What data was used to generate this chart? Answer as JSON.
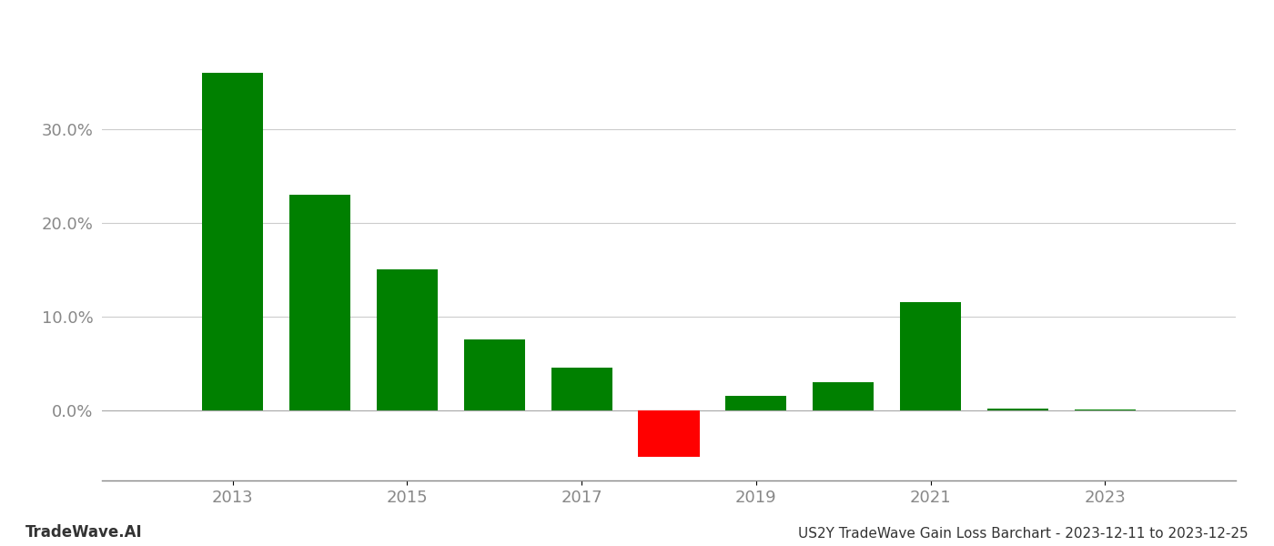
{
  "years": [
    2013,
    2014,
    2015,
    2016,
    2017,
    2018,
    2019,
    2020,
    2021,
    2022,
    2023
  ],
  "values": [
    0.36,
    0.23,
    0.15,
    0.075,
    0.045,
    -0.05,
    0.015,
    0.03,
    0.115,
    0.002,
    0.001
  ],
  "bar_colors": [
    "#008000",
    "#008000",
    "#008000",
    "#008000",
    "#008000",
    "#ff0000",
    "#008000",
    "#008000",
    "#008000",
    "#008000",
    "#008000"
  ],
  "title": "US2Y TradeWave Gain Loss Barchart - 2023-12-11 to 2023-12-25",
  "footer_left": "TradeWave.AI",
  "background_color": "#ffffff",
  "ytick_labels": [
    "0.0%",
    "10.0%",
    "20.0%",
    "30.0%"
  ],
  "ytick_values": [
    0.0,
    0.1,
    0.2,
    0.3
  ],
  "ylim": [
    -0.075,
    0.42
  ],
  "xlim": [
    2011.5,
    2024.5
  ],
  "grid_color": "#cccccc",
  "bar_width": 0.7,
  "xtick_years": [
    2013,
    2015,
    2017,
    2019,
    2021,
    2023
  ]
}
